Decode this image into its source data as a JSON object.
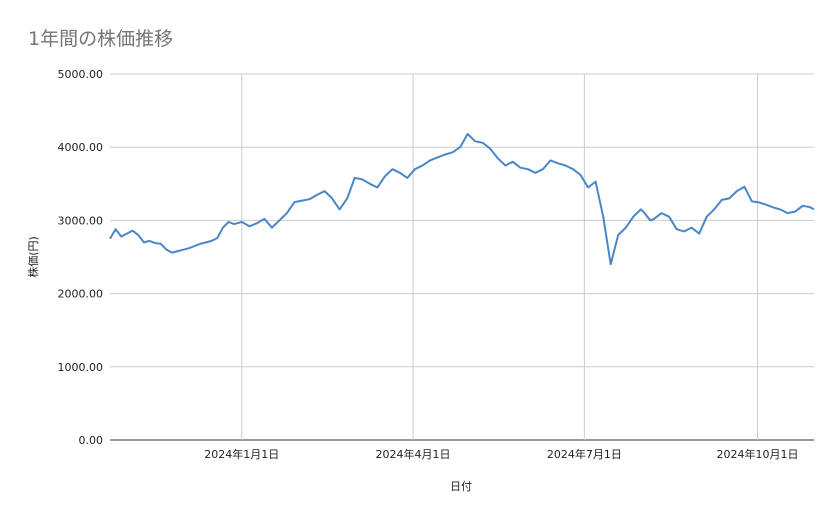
{
  "chart_data": {
    "type": "line",
    "title": "1年間の株価推移",
    "xlabel": "日付",
    "ylabel": "株価(円)",
    "ylim": [
      0,
      5000
    ],
    "yticks": [
      "0.00",
      "1000.00",
      "2000.00",
      "3000.00",
      "4000.00",
      "5000.00"
    ],
    "x_range": [
      "2023-10-23",
      "2024-10-31"
    ],
    "xticks": [
      {
        "date": "2024-01-01",
        "label": "2024年1月1日"
      },
      {
        "date": "2024-04-01",
        "label": "2024年4月1日"
      },
      {
        "date": "2024-07-01",
        "label": "2024年7月1日"
      },
      {
        "date": "2024-10-01",
        "label": "2024年10月1日"
      }
    ],
    "grid": true,
    "legend": "none",
    "line_color": "#4a86c8",
    "series": [
      {
        "x": [
          "2023-10-23",
          "2023-10-26",
          "2023-10-29",
          "2023-11-01",
          "2023-11-04",
          "2023-11-07",
          "2023-11-10",
          "2023-11-13",
          "2023-11-16",
          "2023-11-19",
          "2023-11-22",
          "2023-11-25",
          "2023-11-28",
          "2023-12-01",
          "2023-12-04",
          "2023-12-07",
          "2023-12-10",
          "2023-12-13",
          "2023-12-16",
          "2023-12-19",
          "2023-12-22",
          "2023-12-25",
          "2023-12-28",
          "2024-01-01",
          "2024-01-05",
          "2024-01-09",
          "2024-01-13",
          "2024-01-17",
          "2024-01-21",
          "2024-01-25",
          "2024-01-29",
          "2024-02-02",
          "2024-02-06",
          "2024-02-10",
          "2024-02-14",
          "2024-02-18",
          "2024-02-22",
          "2024-02-26",
          "2024-03-01",
          "2024-03-05",
          "2024-03-09",
          "2024-03-13",
          "2024-03-17",
          "2024-03-21",
          "2024-03-25",
          "2024-03-29",
          "2024-04-02",
          "2024-04-06",
          "2024-04-10",
          "2024-04-14",
          "2024-04-18",
          "2024-04-22",
          "2024-04-26",
          "2024-04-30",
          "2024-05-04",
          "2024-05-08",
          "2024-05-12",
          "2024-05-16",
          "2024-05-20",
          "2024-05-24",
          "2024-05-28",
          "2024-06-01",
          "2024-06-05",
          "2024-06-09",
          "2024-06-13",
          "2024-06-17",
          "2024-06-21",
          "2024-06-25",
          "2024-06-29",
          "2024-07-03",
          "2024-07-07",
          "2024-07-11",
          "2024-07-15",
          "2024-07-19",
          "2024-07-23",
          "2024-07-27",
          "2024-07-31",
          "2024-08-02",
          "2024-08-05",
          "2024-08-07",
          "2024-08-11",
          "2024-08-15",
          "2024-08-19",
          "2024-08-23",
          "2024-08-27",
          "2024-08-31",
          "2024-09-04",
          "2024-09-08",
          "2024-09-12",
          "2024-09-16",
          "2024-09-20",
          "2024-09-24",
          "2024-09-28",
          "2024-10-01",
          "2024-10-05",
          "2024-10-09",
          "2024-10-13",
          "2024-10-17",
          "2024-10-21",
          "2024-10-25",
          "2024-10-29",
          "2024-10-31"
        ],
        "y": [
          2750,
          2880,
          2780,
          2820,
          2860,
          2800,
          2700,
          2720,
          2690,
          2680,
          2600,
          2560,
          2580,
          2600,
          2620,
          2650,
          2680,
          2700,
          2720,
          2760,
          2900,
          2980,
          2950,
          2980,
          2920,
          2960,
          3020,
          2900,
          3000,
          3100,
          3250,
          3270,
          3290,
          3350,
          3400,
          3300,
          3150,
          3300,
          3580,
          3560,
          3500,
          3450,
          3600,
          3700,
          3650,
          3580,
          3700,
          3750,
          3820,
          3860,
          3900,
          3930,
          4000,
          4180,
          4080,
          4060,
          3980,
          3850,
          3750,
          3800,
          3720,
          3700,
          3650,
          3700,
          3820,
          3780,
          3750,
          3700,
          3620,
          3450,
          3530,
          3050,
          2400,
          2800,
          2900,
          3050,
          3150,
          3100,
          3000,
          3020,
          3100,
          3050,
          2880,
          2850,
          2900,
          2820,
          3050,
          3150,
          3280,
          3300,
          3400,
          3460,
          3260,
          3250,
          3220,
          3180,
          3150,
          3100,
          3120,
          3200,
          3180,
          3150
        ]
      }
    ]
  }
}
